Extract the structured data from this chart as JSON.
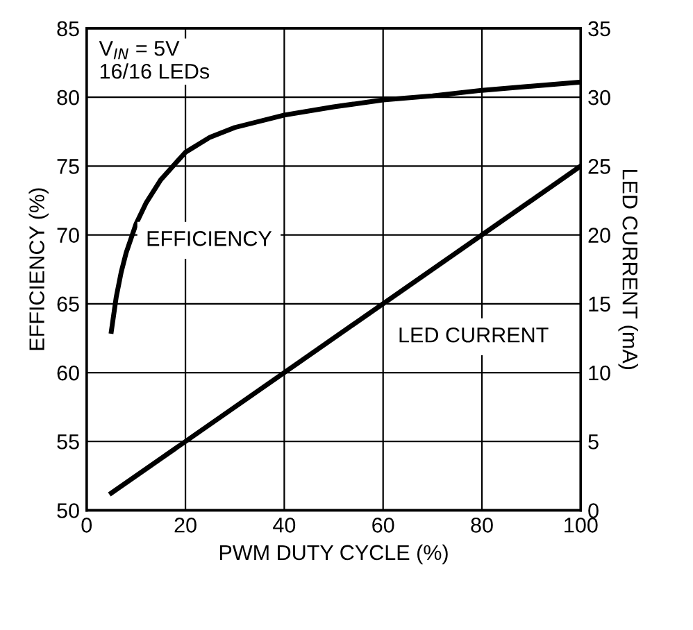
{
  "chart_data": {
    "type": "line",
    "xlabel": "PWM DUTY CYCLE (%)",
    "ylabel": "EFFICIENCY (%)",
    "y2label": "LED CURRENT (mA)",
    "xlim": [
      0,
      100
    ],
    "xticks": [
      0,
      20,
      40,
      60,
      80,
      100
    ],
    "ylim": [
      50,
      85
    ],
    "yticks": [
      50,
      55,
      60,
      65,
      70,
      75,
      80,
      85
    ],
    "y2lim": [
      0,
      35
    ],
    "y2ticks": [
      0,
      5,
      10,
      15,
      20,
      25,
      30,
      35
    ],
    "grid": true,
    "legend": false,
    "line_style": "solid",
    "marker": "none",
    "series": [
      {
        "name": "EFFICIENCY",
        "color": "#000000",
        "x": [
          5,
          6,
          7,
          8,
          10,
          12,
          15,
          20,
          25,
          30,
          40,
          50,
          60,
          70,
          80,
          90,
          100
        ],
        "values": [
          63,
          65.5,
          67.3,
          68.7,
          70.8,
          72.3,
          74,
          76,
          77.1,
          77.8,
          78.7,
          79.3,
          79.8,
          80.1,
          80.5,
          80.8,
          81.1
        ]
      },
      {
        "name": "LED CURRENT",
        "color": "#000000",
        "axis": "y2",
        "x": [
          5,
          100
        ],
        "values": [
          1.25,
          25
        ]
      }
    ],
    "annotations": [
      "V$_{IN}$ = 5V\n16/16 LEDs"
    ]
  }
}
